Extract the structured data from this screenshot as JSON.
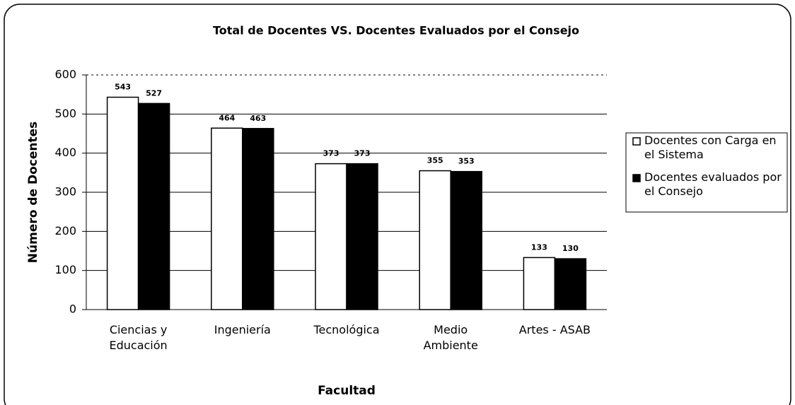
{
  "chart_data": {
    "type": "bar",
    "title": "Total de Docentes VS. Docentes Evaluados por el Consejo",
    "x_label": "Facultad",
    "y_label": "Número de Docentes",
    "categories": [
      "Ciencias y Educación",
      "Ingeniería",
      "Tecnológica",
      "Medio Ambiente",
      "Artes - ASAB"
    ],
    "series": [
      {
        "name": "Docentes con Carga en el Sistema",
        "color": "#ffffff",
        "values": [
          543,
          464,
          373,
          355,
          133
        ]
      },
      {
        "name": "Docentes evaluados por el Consejo",
        "color": "#000000",
        "values": [
          527,
          463,
          373,
          353,
          130
        ]
      }
    ],
    "ylim": [
      0,
      600
    ],
    "yticks": [
      0,
      100,
      200,
      300,
      400,
      500,
      600
    ],
    "grid": true,
    "legend": "right"
  }
}
